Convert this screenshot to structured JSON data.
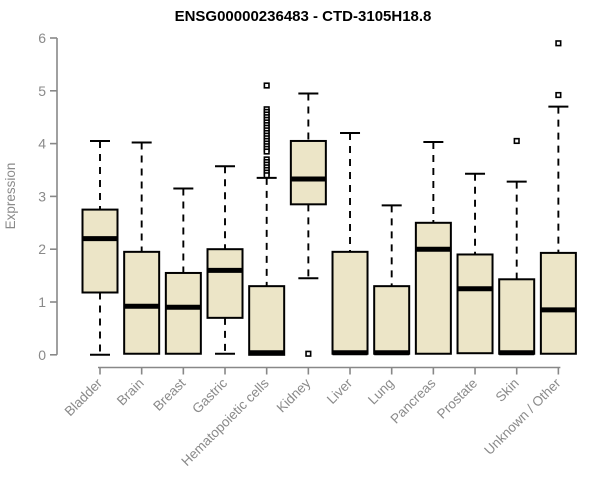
{
  "title": "ENSG00000236483 - CTD-3105H18.8",
  "chart_data": {
    "type": "boxplot",
    "title": "ENSG00000236483 - CTD-3105H18.8",
    "xlabel": "",
    "ylabel": "Expression",
    "ylim": [
      0,
      6
    ],
    "yticks": [
      0,
      1,
      2,
      3,
      4,
      5,
      6
    ],
    "grid": false,
    "legend": "none",
    "categories": [
      "Bladder",
      "Brain",
      "Breast",
      "Gastric",
      "Hematopoietic cells",
      "Kidney",
      "Liver",
      "Lung",
      "Pancreas",
      "Prostate",
      "Skin",
      "Unknown / Other"
    ],
    "series": [
      {
        "name": "Bladder",
        "whisker_low": 0.0,
        "q1": 1.18,
        "median": 2.2,
        "q3": 2.75,
        "whisker_high": 4.05,
        "outliers": []
      },
      {
        "name": "Brain",
        "whisker_low": 0.0,
        "q1": 0.02,
        "median": 0.92,
        "q3": 1.95,
        "whisker_high": 4.02,
        "outliers": []
      },
      {
        "name": "Breast",
        "whisker_low": 0.0,
        "q1": 0.02,
        "median": 0.9,
        "q3": 1.55,
        "whisker_high": 3.15,
        "outliers": []
      },
      {
        "name": "Gastric",
        "whisker_low": 0.02,
        "q1": 0.7,
        "median": 1.6,
        "q3": 2.0,
        "whisker_high": 3.57,
        "outliers": []
      },
      {
        "name": "Hematopoietic cells",
        "whisker_low": 0.0,
        "q1": 0.0,
        "median": 0.04,
        "q3": 1.3,
        "whisker_high": 3.35,
        "outliers": [
          5.1,
          4.65,
          4.6,
          4.55,
          4.5,
          4.45,
          4.4,
          4.35,
          4.3,
          4.25,
          4.2,
          4.15,
          4.1,
          4.05,
          4.0,
          3.95,
          3.9,
          3.85,
          3.7,
          3.65,
          3.6,
          3.55,
          3.5,
          3.45,
          3.4
        ]
      },
      {
        "name": "Kidney",
        "whisker_low": 1.45,
        "q1": 2.85,
        "median": 3.33,
        "q3": 4.05,
        "whisker_high": 4.95,
        "outliers": [
          0.02
        ]
      },
      {
        "name": "Liver",
        "whisker_low": 0.0,
        "q1": 0.02,
        "median": 0.04,
        "q3": 1.95,
        "whisker_high": 4.2,
        "outliers": []
      },
      {
        "name": "Lung",
        "whisker_low": 0.0,
        "q1": 0.02,
        "median": 0.04,
        "q3": 1.3,
        "whisker_high": 2.83,
        "outliers": []
      },
      {
        "name": "Pancreas",
        "whisker_low": 0.02,
        "q1": 0.02,
        "median": 2.0,
        "q3": 2.5,
        "whisker_high": 4.03,
        "outliers": []
      },
      {
        "name": "Prostate",
        "whisker_low": 0.0,
        "q1": 0.03,
        "median": 1.25,
        "q3": 1.9,
        "whisker_high": 3.43,
        "outliers": []
      },
      {
        "name": "Skin",
        "whisker_low": 0.0,
        "q1": 0.02,
        "median": 0.04,
        "q3": 1.43,
        "whisker_high": 3.28,
        "outliers": [
          4.05
        ]
      },
      {
        "name": "Unknown / Other",
        "whisker_low": 0.0,
        "q1": 0.02,
        "median": 0.85,
        "q3": 1.93,
        "whisker_high": 4.7,
        "outliers": [
          4.92,
          5.9
        ]
      }
    ]
  },
  "colors": {
    "background": "#ffffff",
    "box_fill": "#ece5c7",
    "box_stroke": "#000000",
    "median": "#000000",
    "whisker": "#000000",
    "axis": "#888888",
    "tick_label": "#8a8a8a",
    "title": "#000000",
    "outlier_fill": "#ffffff",
    "outlier_stroke": "#000000"
  }
}
